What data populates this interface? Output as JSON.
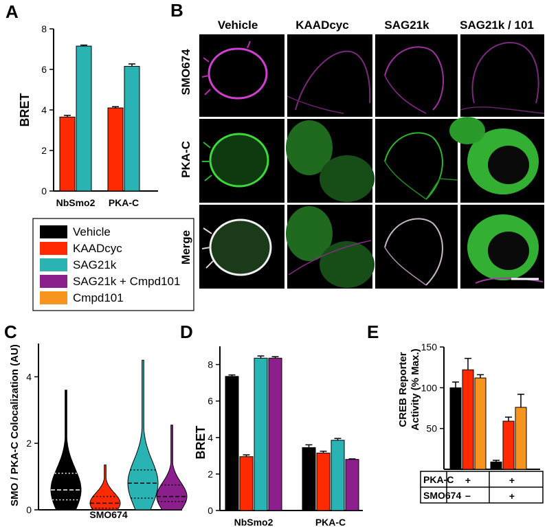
{
  "panels": {
    "A": "A",
    "B": "B",
    "C": "C",
    "D": "D",
    "E": "E"
  },
  "colors": {
    "Vehicle": "#000000",
    "KAADcyc": "#ff2a00",
    "SAG21k": "#2ab3b3",
    "SAG21k + Cmpd101": "#8b1f8b",
    "Cmpd101": "#f7941d"
  },
  "legend": {
    "items": [
      "Vehicle",
      "KAADcyc",
      "SAG21k",
      "SAG21k + Cmpd101",
      "Cmpd101"
    ]
  },
  "microscopy": {
    "columns": [
      "Vehicle",
      "KAADcyc",
      "SAG21k",
      "SAG21k / 101"
    ],
    "rows": [
      "SMO674",
      "PKA-C",
      "Merge"
    ]
  },
  "chart_data": [
    {
      "panel": "A",
      "type": "bar",
      "ylabel": "BRET",
      "ylim": [
        0,
        8
      ],
      "yticks": [
        0,
        2,
        4,
        6,
        8
      ],
      "categories": [
        "NbSmo2",
        "PKA-C"
      ],
      "series": [
        {
          "name": "KAADcyc",
          "values": [
            3.65,
            4.1
          ],
          "errors": [
            0.08,
            0.06
          ]
        },
        {
          "name": "SAG21k",
          "values": [
            7.15,
            6.15
          ],
          "errors": [
            0.05,
            0.12
          ]
        }
      ]
    },
    {
      "panel": "C",
      "type": "violin",
      "ylabel": "SMO / PKA-C Colocalization (AU)",
      "xlabel": "SMO674",
      "ylim": [
        0,
        5
      ],
      "yticks": [
        0,
        2,
        4
      ],
      "series": [
        {
          "name": "Vehicle",
          "median": 0.6,
          "q1": 0.3,
          "q3": 1.1,
          "min": 0,
          "max": 3.6
        },
        {
          "name": "KAADcyc",
          "median": 0.2,
          "q1": 0.05,
          "q3": 0.4,
          "min": 0,
          "max": 1.35
        },
        {
          "name": "SAG21k",
          "median": 0.8,
          "q1": 0.35,
          "q3": 1.2,
          "min": 0,
          "max": 4.5
        },
        {
          "name": "SAG21k + Cmpd101",
          "median": 0.4,
          "q1": 0.25,
          "q3": 0.75,
          "min": 0,
          "max": 2.55
        }
      ]
    },
    {
      "panel": "D",
      "type": "bar",
      "ylabel": "BRET",
      "ylim": [
        0,
        9
      ],
      "yticks": [
        0,
        2,
        4,
        6,
        8
      ],
      "categories": [
        "NbSmo2",
        "PKA-C"
      ],
      "series": [
        {
          "name": "Vehicle",
          "values": [
            7.35,
            3.45
          ],
          "errors": [
            0.08,
            0.15
          ]
        },
        {
          "name": "KAADcyc",
          "values": [
            2.95,
            3.15
          ],
          "errors": [
            0.1,
            0.1
          ]
        },
        {
          "name": "SAG21k",
          "values": [
            8.35,
            3.85
          ],
          "errors": [
            0.12,
            0.1
          ]
        },
        {
          "name": "SAG21k + Cmpd101",
          "values": [
            8.35,
            2.8
          ],
          "errors": [
            0.08,
            0.03
          ]
        }
      ]
    },
    {
      "panel": "E",
      "type": "bar",
      "ylabel": "CREB Reporter Activity (% Max.)",
      "ylim": [
        0,
        150
      ],
      "yticks": [
        50,
        100,
        150
      ],
      "table": {
        "rows": [
          {
            "label": "PKA-C",
            "values": [
              "+",
              "+"
            ]
          },
          {
            "label": "SMO674",
            "values": [
              "−",
              "+"
            ]
          }
        ]
      },
      "series": [
        {
          "name": "Vehicle",
          "values": [
            100,
            9
          ],
          "errors": [
            7,
            2
          ]
        },
        {
          "name": "KAADcyc",
          "values": [
            122,
            59
          ],
          "errors": [
            14,
            5
          ]
        },
        {
          "name": "Cmpd101",
          "values": [
            112,
            76
          ],
          "errors": [
            4,
            16
          ]
        }
      ]
    }
  ]
}
